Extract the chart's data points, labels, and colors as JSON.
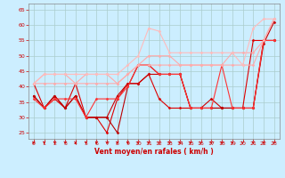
{
  "x": [
    0,
    1,
    2,
    3,
    4,
    5,
    6,
    7,
    8,
    9,
    10,
    11,
    12,
    13,
    14,
    15,
    16,
    17,
    18,
    19,
    20,
    21,
    22,
    23
  ],
  "lines": [
    {
      "y": [
        41,
        33,
        36,
        33,
        41,
        30,
        30,
        25,
        36,
        41,
        41,
        44,
        36,
        33,
        33,
        33,
        33,
        33,
        33,
        33,
        33,
        55,
        55,
        55
      ],
      "color": "#dd0000",
      "lw": 0.8,
      "marker": "D",
      "ms": 1.5
    },
    {
      "y": [
        37,
        33,
        37,
        33,
        37,
        30,
        30,
        30,
        37,
        41,
        41,
        44,
        44,
        44,
        44,
        33,
        33,
        36,
        33,
        33,
        33,
        33,
        54,
        61
      ],
      "color": "#cc0000",
      "lw": 0.8,
      "marker": "D",
      "ms": 1.5
    },
    {
      "y": [
        37,
        33,
        37,
        33,
        37,
        30,
        30,
        30,
        25,
        40,
        47,
        47,
        44,
        44,
        44,
        33,
        33,
        33,
        33,
        33,
        33,
        33,
        55,
        55
      ],
      "color": "#bb0000",
      "lw": 0.8,
      "marker": "D",
      "ms": 1.5
    },
    {
      "y": [
        36,
        33,
        36,
        36,
        36,
        30,
        36,
        36,
        36,
        40,
        47,
        47,
        44,
        44,
        44,
        33,
        33,
        33,
        47,
        33,
        33,
        33,
        55,
        55
      ],
      "color": "#ff3333",
      "lw": 0.8,
      "marker": "D",
      "ms": 1.5
    },
    {
      "y": [
        41,
        44,
        44,
        44,
        41,
        44,
        44,
        44,
        41,
        44,
        47,
        50,
        50,
        50,
        47,
        47,
        47,
        47,
        47,
        51,
        51,
        51,
        55,
        62
      ],
      "color": "#ffaaaa",
      "lw": 0.8,
      "marker": "D",
      "ms": 1.5
    },
    {
      "y": [
        41,
        41,
        41,
        41,
        41,
        41,
        41,
        41,
        41,
        44,
        47,
        47,
        47,
        47,
        47,
        47,
        47,
        47,
        47,
        47,
        47,
        47,
        55,
        62
      ],
      "color": "#ffaaaa",
      "lw": 0.8,
      "marker": "D",
      "ms": 1.5
    },
    {
      "y": [
        41,
        44,
        44,
        44,
        44,
        44,
        44,
        44,
        44,
        47,
        50,
        59,
        58,
        51,
        51,
        51,
        51,
        51,
        51,
        51,
        47,
        59,
        62,
        62
      ],
      "color": "#ffbbbb",
      "lw": 0.8,
      "marker": "D",
      "ms": 1.5
    }
  ],
  "xlabel": "Vent moyen/en rafales ( km/h )",
  "xlim": [
    -0.5,
    23.5
  ],
  "ylim": [
    23,
    67
  ],
  "yticks": [
    25,
    30,
    35,
    40,
    45,
    50,
    55,
    60,
    65
  ],
  "xticks": [
    0,
    1,
    2,
    3,
    4,
    5,
    6,
    7,
    8,
    9,
    10,
    11,
    12,
    13,
    14,
    15,
    16,
    17,
    18,
    19,
    20,
    21,
    22,
    23
  ],
  "bg_color": "#cceeff",
  "grid_color": "#aacccc",
  "tick_color": "#cc0000",
  "xlabel_color": "#cc0000"
}
